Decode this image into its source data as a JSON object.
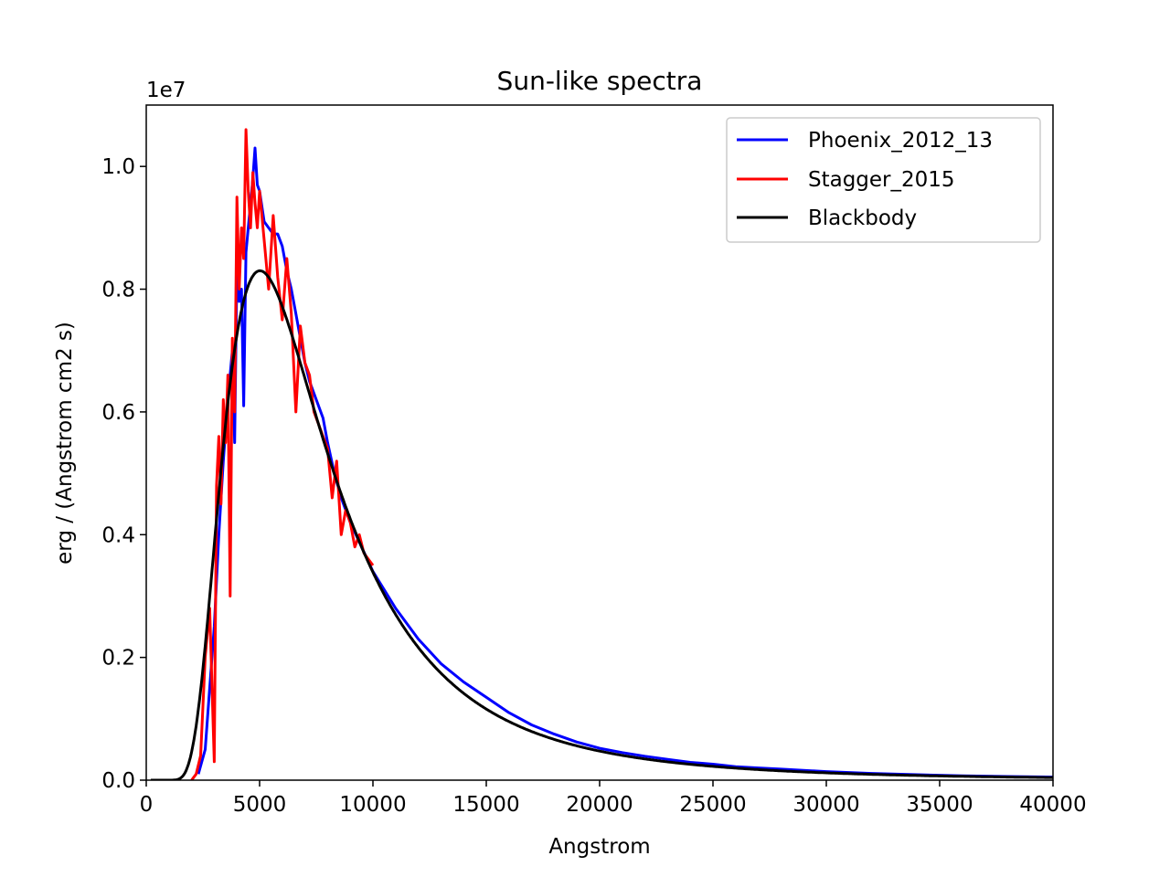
{
  "chart_data": {
    "type": "line",
    "title": "Sun-like spectra",
    "xlabel": "Angstrom",
    "ylabel": "erg / (Angstrom cm2 s)",
    "y_offset_label": "1e7",
    "xlim": [
      0,
      40000
    ],
    "ylim": [
      0,
      1.1
    ],
    "x_ticks": [
      0,
      5000,
      10000,
      15000,
      20000,
      25000,
      30000,
      35000,
      40000
    ],
    "x_tick_labels": [
      "0",
      "5000",
      "10000",
      "15000",
      "20000",
      "25000",
      "30000",
      "35000",
      "40000"
    ],
    "y_ticks": [
      0,
      0.2,
      0.4,
      0.6,
      0.8,
      1.0
    ],
    "y_tick_labels": [
      "0.0",
      "0.2",
      "0.4",
      "0.6",
      "0.8",
      "1.0"
    ],
    "grid": false,
    "legend_position": "top-right",
    "series": [
      {
        "name": "Phoenix_2012_13",
        "color": "#0000ff",
        "x": [
          2300,
          2600,
          2800,
          3000,
          3200,
          3400,
          3600,
          3800,
          3900,
          4000,
          4100,
          4200,
          4300,
          4400,
          4500,
          4600,
          4700,
          4800,
          4900,
          5000,
          5200,
          5400,
          5600,
          5800,
          6000,
          6200,
          6400,
          6600,
          6800,
          7000,
          7200,
          7500,
          7800,
          8000,
          8300,
          8600,
          9000,
          9500,
          10000,
          10500,
          11000,
          12000,
          13000,
          14000,
          15000,
          16000,
          17000,
          18000,
          19000,
          20000,
          21000,
          22000,
          23000,
          24000,
          25000,
          26000,
          27000,
          28000,
          30000,
          32000,
          34000,
          36000,
          38000,
          40000
        ],
        "values": [
          0.01,
          0.05,
          0.15,
          0.25,
          0.4,
          0.52,
          0.62,
          0.7,
          0.55,
          0.84,
          0.78,
          0.8,
          0.61,
          0.86,
          0.9,
          0.94,
          0.98,
          1.03,
          0.97,
          0.96,
          0.91,
          0.9,
          0.89,
          0.89,
          0.87,
          0.83,
          0.8,
          0.76,
          0.72,
          0.68,
          0.65,
          0.62,
          0.59,
          0.55,
          0.5,
          0.46,
          0.42,
          0.38,
          0.34,
          0.31,
          0.28,
          0.23,
          0.19,
          0.16,
          0.135,
          0.11,
          0.09,
          0.075,
          0.062,
          0.052,
          0.045,
          0.039,
          0.034,
          0.029,
          0.026,
          0.022,
          0.02,
          0.018,
          0.014,
          0.011,
          0.009,
          0.007,
          0.006,
          0.005
        ]
      },
      {
        "name": "Stagger_2015",
        "color": "#ff0000",
        "x": [
          2000,
          2200,
          2400,
          2600,
          2800,
          3000,
          3100,
          3200,
          3300,
          3400,
          3500,
          3600,
          3700,
          3800,
          3900,
          4000,
          4100,
          4200,
          4300,
          4400,
          4500,
          4600,
          4700,
          4800,
          4900,
          5000,
          5200,
          5400,
          5600,
          5800,
          6000,
          6200,
          6400,
          6600,
          6800,
          7000,
          7200,
          7400,
          7600,
          7800,
          8000,
          8200,
          8400,
          8600,
          8800,
          9000,
          9200,
          9400,
          9600,
          9800,
          10000
        ],
        "values": [
          0.0,
          0.01,
          0.04,
          0.2,
          0.28,
          0.03,
          0.48,
          0.56,
          0.45,
          0.62,
          0.55,
          0.66,
          0.3,
          0.72,
          0.6,
          0.95,
          0.8,
          0.9,
          0.85,
          1.06,
          0.96,
          0.9,
          0.99,
          0.94,
          0.9,
          0.96,
          0.88,
          0.8,
          0.92,
          0.82,
          0.75,
          0.85,
          0.76,
          0.6,
          0.74,
          0.68,
          0.66,
          0.6,
          0.58,
          0.56,
          0.54,
          0.46,
          0.52,
          0.4,
          0.44,
          0.42,
          0.38,
          0.4,
          0.37,
          0.36,
          0.35
        ]
      },
      {
        "name": "Blackbody",
        "color": "#000000",
        "model": "planck",
        "temperature_K": 5778
      }
    ]
  }
}
